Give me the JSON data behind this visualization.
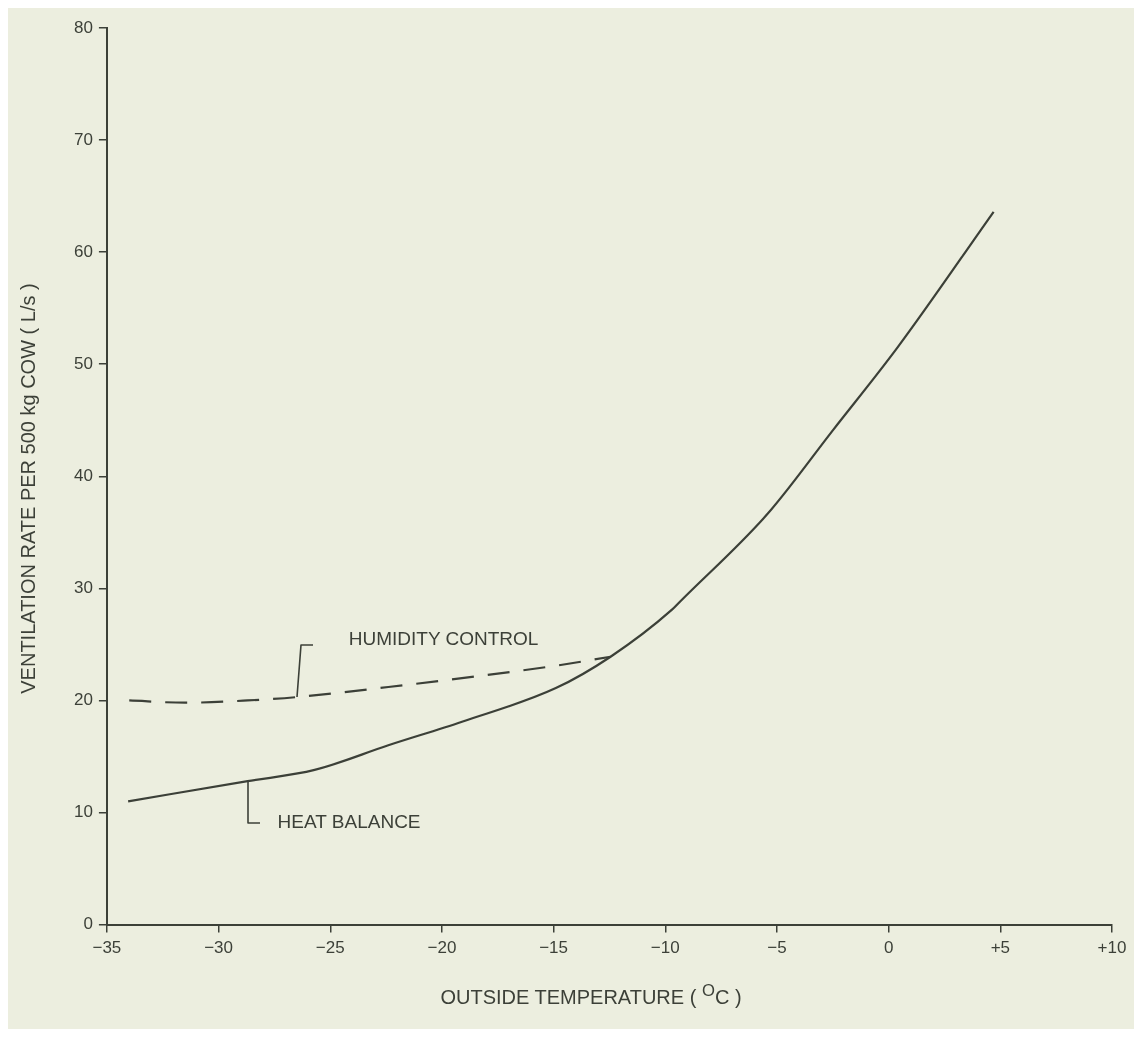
{
  "chart_data": {
    "type": "line",
    "xlabel": "OUTSIDE TEMPERATURE ( $^{O}$C )",
    "ylabel": "VENTILATION RATE PER 500 kg COW ( L/s )",
    "xlim": [
      -35,
      10
    ],
    "ylim": [
      0,
      80
    ],
    "xticks": [
      {
        "value": -35,
        "label": "−35"
      },
      {
        "value": -30,
        "label": "−30"
      },
      {
        "value": -25,
        "label": "−25"
      },
      {
        "value": -20,
        "label": "−20"
      },
      {
        "value": -15,
        "label": "−15"
      },
      {
        "value": -10,
        "label": "−10"
      },
      {
        "value": -5,
        "label": "−5"
      },
      0,
      {
        "value": 5,
        "label": "+5"
      },
      {
        "value": 10,
        "label": "+10"
      }
    ],
    "yticks": [
      0,
      10,
      20,
      30,
      40,
      50,
      60,
      70,
      80
    ],
    "grid": false,
    "legend": false,
    "marker": "none",
    "series": [
      {
        "name": "HEAT BALANCE",
        "color": "#3c4038",
        "line_style": "solid",
        "x": [
          -34.05,
          -28.7,
          -25.7,
          -22.4,
          -19.1,
          -14.9,
          -12.45,
          -9.7,
          -9.3,
          -5.4,
          -2.5,
          0.4,
          4.7
        ],
        "values": [
          11.0,
          12.8,
          13.8,
          16.0,
          18.1,
          21.1,
          23.9,
          28.1,
          28.9,
          36.7,
          44.1,
          51.5,
          63.6
        ]
      },
      {
        "name": "HUMIDITY CONTROL",
        "color": "#3c4038",
        "line_style": "dashed",
        "x": [
          -34.0,
          -31.5,
          -28.7,
          -26.5,
          -22.4,
          -18.25,
          -14.9,
          -12.45
        ],
        "values": [
          20.0,
          19.8,
          20.0,
          20.3,
          21.2,
          22.2,
          23.1,
          23.9
        ]
      }
    ]
  }
}
